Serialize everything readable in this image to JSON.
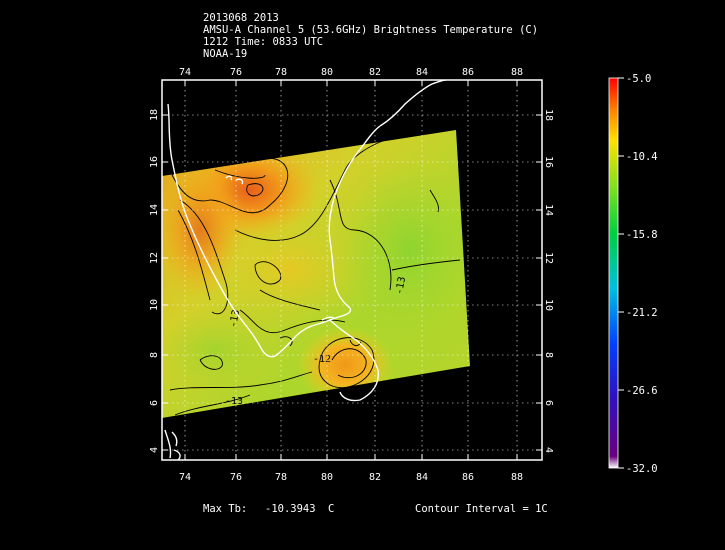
{
  "header": {
    "line1": "2013068 2013",
    "line2": "AMSU-A Channel 5 (53.6GHz) Brightness Temperature (C)",
    "line3": "1212 Time: 0833 UTC",
    "line4": "NOAA-19"
  },
  "axes": {
    "lon_ticks": [
      "74",
      "76",
      "78",
      "80",
      "82",
      "84",
      "86",
      "88"
    ],
    "lat_ticks": [
      "4",
      "6",
      "8",
      "10",
      "12",
      "14",
      "16",
      "18"
    ]
  },
  "colorbar": {
    "labels": [
      "-5.0",
      "-10.4",
      "-15.8",
      "-21.2",
      "-26.6",
      "-32.0"
    ]
  },
  "contour_labels": [
    "-13",
    "-13",
    "-13",
    "-12"
  ],
  "footer": {
    "max_label": "Max Tb:",
    "max_value": "-10.3943",
    "max_unit": "C",
    "contour_interval": "Contour Interval = 1C"
  },
  "colors": {
    "background": "#000000",
    "frame": "#ffffff",
    "coast": "#ffffff",
    "contour": "#000000",
    "field_min": "#9ed62a",
    "field_max": "#f07a10"
  }
}
